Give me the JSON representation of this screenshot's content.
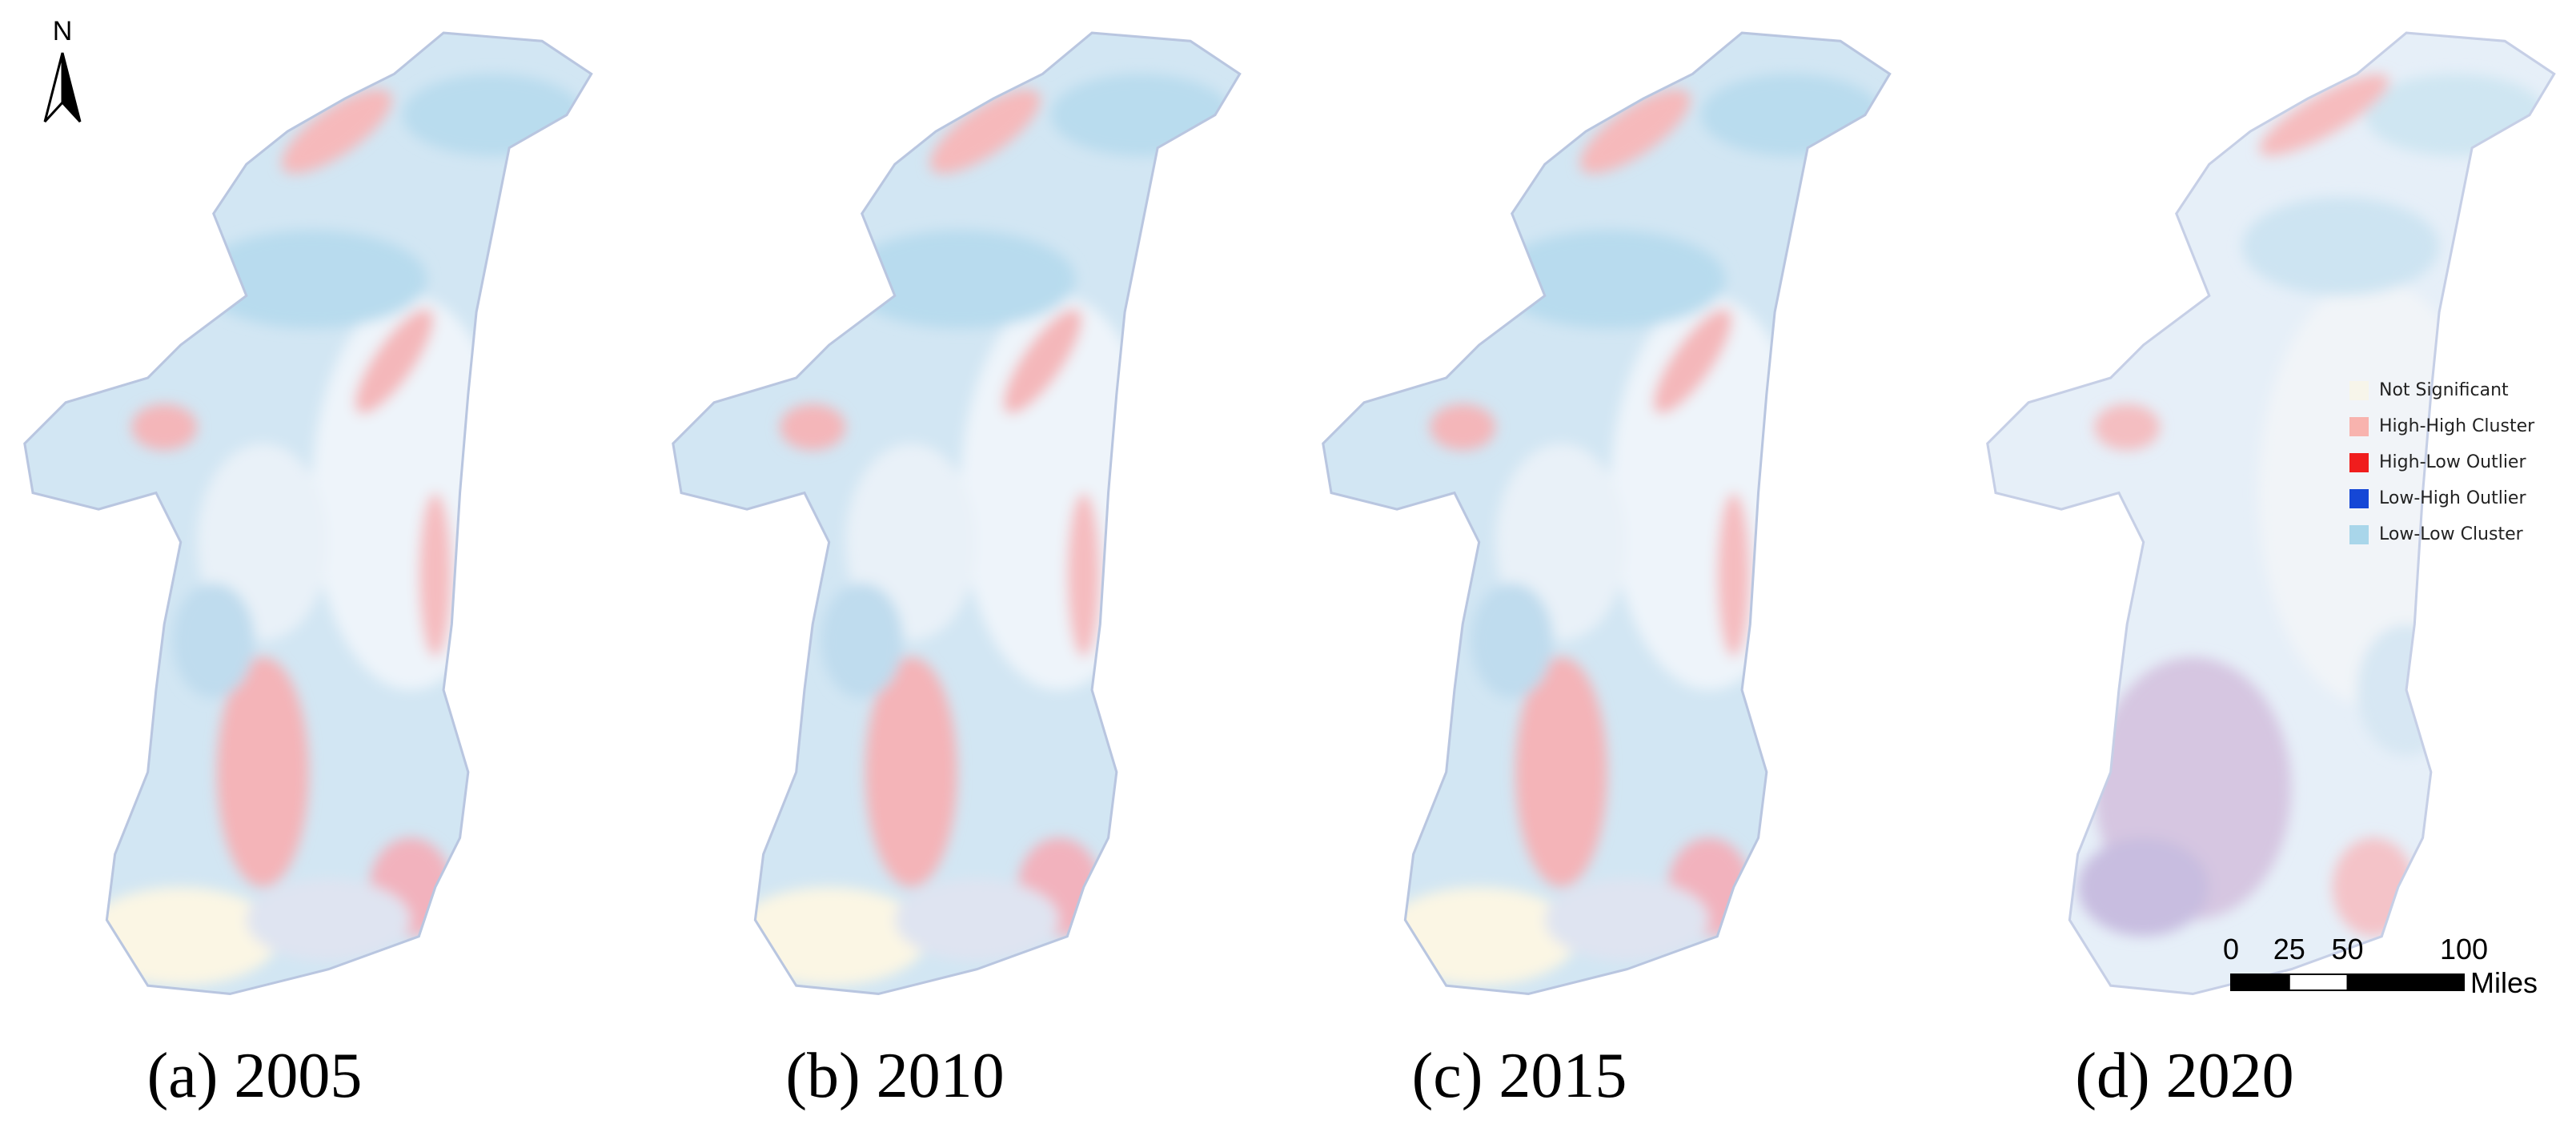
{
  "north": {
    "label": "N"
  },
  "legend": {
    "items": [
      {
        "label": "Not Significant",
        "color": "#f7f5ea"
      },
      {
        "label": "High-High Cluster",
        "color": "#f8b3ae"
      },
      {
        "label": "High-Low Outlier",
        "color": "#f01d1d"
      },
      {
        "label": "Low-High Outlier",
        "color": "#1547d6"
      },
      {
        "label": "Low-Low Cluster",
        "color": "#a9d6ea"
      }
    ]
  },
  "scale_bar": {
    "ticks": [
      0,
      25,
      50,
      100
    ],
    "unit": "Miles"
  },
  "panels": [
    {
      "caption": "(a) 2005"
    },
    {
      "caption": "(b) 2010"
    },
    {
      "caption": "(c) 2015"
    },
    {
      "caption": "(d) 2020"
    }
  ]
}
